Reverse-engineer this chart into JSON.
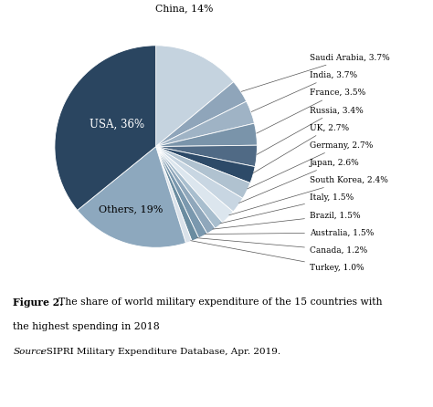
{
  "labels": [
    "China",
    "Saudi Arabia",
    "India",
    "France",
    "Russia",
    "UK",
    "Germany",
    "Japan",
    "South Korea",
    "Italy",
    "Brazil",
    "Australia",
    "Canada",
    "Turkey",
    "Others",
    "USA"
  ],
  "values": [
    14.0,
    3.7,
    3.7,
    3.5,
    3.4,
    2.7,
    2.7,
    2.6,
    2.4,
    1.5,
    1.5,
    1.5,
    1.2,
    1.0,
    19.0,
    36.0
  ],
  "display_labels": [
    "China, 14%",
    "Saudi Arabia, 3.7%",
    "India, 3.7%",
    "France, 3.5%",
    "Russia, 3.4%",
    "UK, 2.7%",
    "Germany, 2.7%",
    "Japan, 2.6%",
    "South Korea, 2.4%",
    "Italy, 1.5%",
    "Brazil, 1.5%",
    "Australia, 1.5%",
    "Canada, 1.2%",
    "Turkey, 1.0%",
    "Others, 19%",
    "USA, 36%"
  ],
  "colors": [
    "#c5d3df",
    "#8fa5ba",
    "#9fb3c5",
    "#7a94aa",
    "#506a85",
    "#2d4a68",
    "#b0c2d0",
    "#c8d6e2",
    "#dce6ee",
    "#a8bece",
    "#8fa7bb",
    "#7a98ae",
    "#6a8ca0",
    "#dae2ea",
    "#8da8be",
    "#2a4560"
  ],
  "bg_chart": "#bfcdd9",
  "bg_caption": "#ffffff",
  "figsize": [
    4.74,
    4.46
  ],
  "dpi": 100,
  "caption_bold": "Figure 2.",
  "caption_normal": " The share of world military expenditure of the 15 countries with\nthe highest spending in 2018",
  "source_italic": "Source",
  "source_normal": ": SIPRI Military Expenditure Database, Apr. 2019."
}
